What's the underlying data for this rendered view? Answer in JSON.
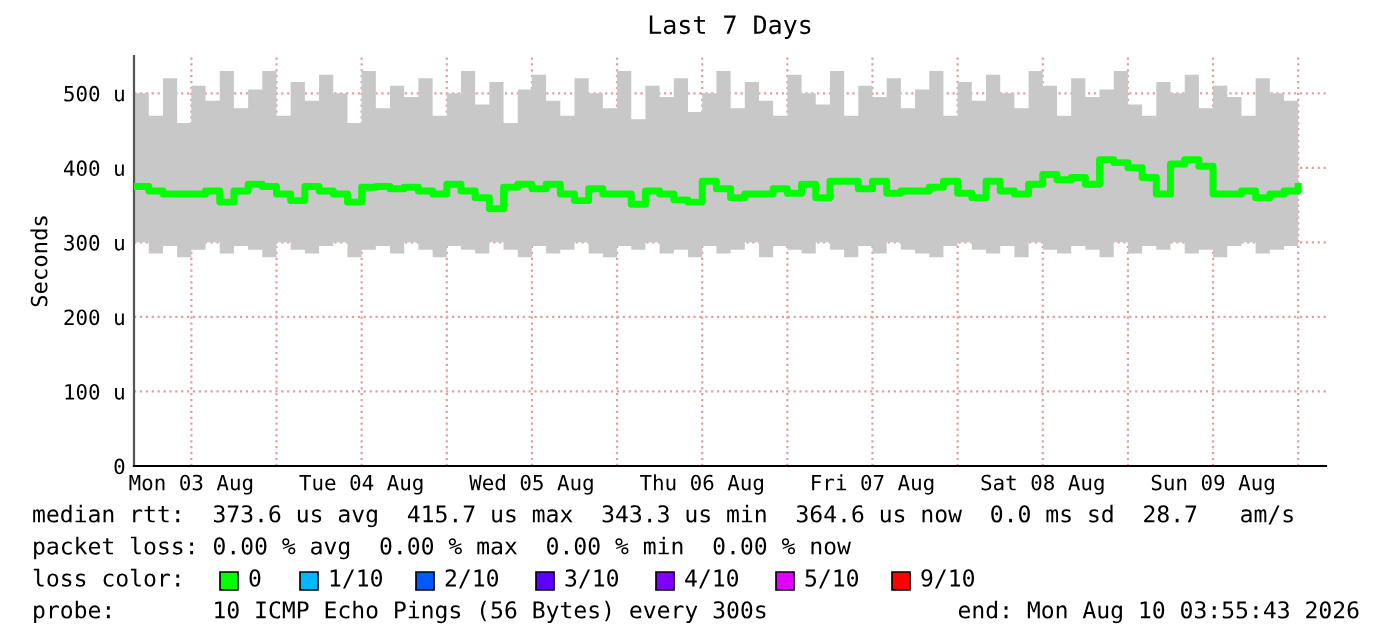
{
  "chart_data": {
    "type": "step",
    "title": "Last 7 Days",
    "ylabel": "Seconds",
    "x": [
      "2026-08-03T04:00",
      "2026-08-03T06:00",
      "2026-08-03T08:00",
      "2026-08-03T10:00",
      "2026-08-03T12:00",
      "2026-08-03T14:00",
      "2026-08-03T16:00",
      "2026-08-03T18:00",
      "2026-08-03T20:00",
      "2026-08-03T22:00",
      "2026-08-04T00:00",
      "2026-08-04T02:00",
      "2026-08-04T04:00",
      "2026-08-04T06:00",
      "2026-08-04T08:00",
      "2026-08-04T10:00",
      "2026-08-04T12:00",
      "2026-08-04T14:00",
      "2026-08-04T16:00",
      "2026-08-04T18:00",
      "2026-08-04T20:00",
      "2026-08-04T22:00",
      "2026-08-05T00:00",
      "2026-08-05T02:00",
      "2026-08-05T04:00",
      "2026-08-05T06:00",
      "2026-08-05T08:00",
      "2026-08-05T10:00",
      "2026-08-05T12:00",
      "2026-08-05T14:00",
      "2026-08-05T16:00",
      "2026-08-05T18:00",
      "2026-08-05T20:00",
      "2026-08-05T22:00",
      "2026-08-06T00:00",
      "2026-08-06T02:00",
      "2026-08-06T04:00",
      "2026-08-06T06:00",
      "2026-08-06T08:00",
      "2026-08-06T10:00",
      "2026-08-06T12:00",
      "2026-08-06T14:00",
      "2026-08-06T16:00",
      "2026-08-06T18:00",
      "2026-08-06T20:00",
      "2026-08-06T22:00",
      "2026-08-07T00:00",
      "2026-08-07T02:00",
      "2026-08-07T04:00",
      "2026-08-07T06:00",
      "2026-08-07T08:00",
      "2026-08-07T10:00",
      "2026-08-07T12:00",
      "2026-08-07T14:00",
      "2026-08-07T16:00",
      "2026-08-07T18:00",
      "2026-08-07T20:00",
      "2026-08-07T22:00",
      "2026-08-08T00:00",
      "2026-08-08T02:00",
      "2026-08-08T04:00",
      "2026-08-08T06:00",
      "2026-08-08T08:00",
      "2026-08-08T10:00",
      "2026-08-08T12:00",
      "2026-08-08T14:00",
      "2026-08-08T16:00",
      "2026-08-08T18:00",
      "2026-08-08T20:00",
      "2026-08-08T22:00",
      "2026-08-09T00:00",
      "2026-08-09T02:00",
      "2026-08-09T04:00",
      "2026-08-09T06:00",
      "2026-08-09T08:00",
      "2026-08-09T10:00",
      "2026-08-09T12:00",
      "2026-08-09T14:00",
      "2026-08-09T16:00",
      "2026-08-09T18:00",
      "2026-08-09T20:00",
      "2026-08-09T22:00",
      "2026-08-10T00:00"
    ],
    "series": [
      {
        "color": "#00ff00",
        "values": [
          375,
          369,
          365,
          365,
          365,
          369,
          354,
          369,
          378,
          375,
          365,
          356,
          375,
          369,
          365,
          354,
          374,
          375,
          372,
          374,
          369,
          365,
          378,
          369,
          360,
          345,
          374,
          378,
          372,
          378,
          365,
          356,
          372,
          365,
          365,
          351,
          369,
          365,
          357,
          354,
          382,
          372,
          360,
          365,
          365,
          372,
          366,
          378,
          360,
          382,
          382,
          372,
          382,
          366,
          369,
          369,
          374,
          382,
          366,
          360,
          382,
          369,
          365,
          378,
          391,
          384,
          387,
          378,
          411,
          407,
          400,
          387,
          365,
          405,
          411,
          402,
          365,
          365,
          369,
          360,
          365,
          369,
          375
        ],
        "lower": [
          300,
          285,
          295,
          280,
          290,
          300,
          285,
          295,
          290,
          280,
          300,
          290,
          285,
          295,
          300,
          280,
          290,
          295,
          285,
          300,
          290,
          280,
          295,
          290,
          285,
          300,
          290,
          280,
          295,
          285,
          290,
          300,
          285,
          280,
          295,
          290,
          300,
          285,
          290,
          280,
          295,
          285,
          290,
          300,
          280,
          295,
          290,
          285,
          300,
          290,
          280,
          295,
          285,
          300,
          290,
          285,
          280,
          295,
          300,
          290,
          285,
          295,
          280,
          300,
          290,
          285,
          295,
          290,
          280,
          300,
          285,
          295,
          290,
          300,
          285,
          290,
          280,
          295,
          300,
          285,
          290,
          295,
          285
        ],
        "upper": [
          500,
          470,
          520,
          460,
          510,
          490,
          530,
          480,
          505,
          530,
          470,
          515,
          490,
          525,
          500,
          460,
          530,
          480,
          510,
          495,
          520,
          470,
          500,
          530,
          485,
          515,
          460,
          505,
          525,
          490,
          470,
          520,
          500,
          480,
          530,
          465,
          510,
          495,
          520,
          475,
          500,
          530,
          480,
          515,
          490,
          470,
          525,
          500,
          485,
          530,
          470,
          510,
          495,
          520,
          480,
          505,
          530,
          470,
          515,
          490,
          525,
          500,
          480,
          530,
          510,
          470,
          520,
          495,
          505,
          530,
          485,
          470,
          515,
          500,
          525,
          480,
          510,
          495,
          470,
          520,
          500,
          490,
          505
        ]
      }
    ],
    "xlim": [
      "2026-08-03T03:55",
      "2026-08-10T03:55"
    ],
    "xticks": [
      {
        "value": "2026-08-03T12:00",
        "label": "Mon 03 Aug"
      },
      {
        "value": "2026-08-04T00:00",
        "label": null
      },
      {
        "value": "2026-08-04T12:00",
        "label": "Tue 04 Aug"
      },
      {
        "value": "2026-08-05T00:00",
        "label": null
      },
      {
        "value": "2026-08-05T12:00",
        "label": "Wed 05 Aug"
      },
      {
        "value": "2026-08-06T00:00",
        "label": null
      },
      {
        "value": "2026-08-06T12:00",
        "label": "Thu 06 Aug"
      },
      {
        "value": "2026-08-07T00:00",
        "label": null
      },
      {
        "value": "2026-08-07T12:00",
        "label": "Fri 07 Aug"
      },
      {
        "value": "2026-08-08T00:00",
        "label": null
      },
      {
        "value": "2026-08-08T12:00",
        "label": "Sat 08 Aug"
      },
      {
        "value": "2026-08-09T00:00",
        "label": null
      },
      {
        "value": "2026-08-09T12:00",
        "label": "Sun 09 Aug"
      },
      {
        "value": "2026-08-10T00:00",
        "label": null
      }
    ],
    "ylim": [
      0,
      550
    ],
    "yticks": [
      0,
      {
        "value": 100,
        "label": "100 u"
      },
      {
        "value": 200,
        "label": "200 u"
      },
      {
        "value": 300,
        "label": "300 u"
      },
      {
        "value": 400,
        "label": "400 u"
      },
      {
        "value": 500,
        "label": "500 u"
      }
    ],
    "grid": true,
    "marker": "none",
    "line_style": "solid",
    "annotations": [
      "median rtt:  373.6 us avg  415.7 us max  343.3 us min  364.6 us now  0.0 ms sd  28.7   am/s",
      "packet loss: 0.00 % avg  0.00 % max  0.00 % min  0.00 % now",
      "loss color:",
      "0",
      "1/10",
      "2/10",
      "3/10",
      "4/10",
      "5/10",
      "9/10",
      "probe:       10 ICMP Echo Pings (56 Bytes) every 300s",
      "end: Mon Aug 10 03:55:43 2026"
    ]
  }
}
